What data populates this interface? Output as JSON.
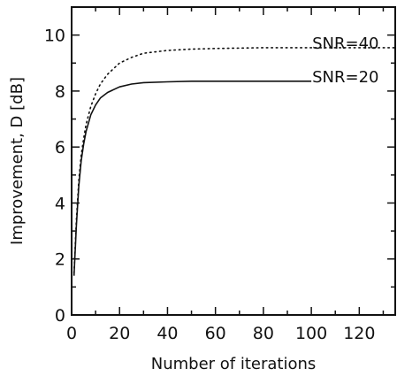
{
  "chart_data": {
    "type": "line",
    "title": "",
    "xlabel": "Number of iterations",
    "ylabel": "Improvement, D [dB]",
    "xlim": [
      0,
      135
    ],
    "ylim": [
      0,
      11
    ],
    "x_ticks": [
      0,
      20,
      40,
      60,
      80,
      100,
      120
    ],
    "y_ticks": [
      0,
      2,
      4,
      6,
      8,
      10
    ],
    "grid": false,
    "legend": "none",
    "series": [
      {
        "name": "SNR=40",
        "style": "dotted",
        "color": "#111111",
        "x": [
          1,
          2,
          3,
          4,
          5,
          6,
          8,
          10,
          12,
          15,
          20,
          25,
          30,
          40,
          50,
          60,
          80,
          100,
          120,
          135
        ],
        "y": [
          1.5,
          3.4,
          4.8,
          5.7,
          6.3,
          6.8,
          7.45,
          7.9,
          8.25,
          8.6,
          9.0,
          9.2,
          9.35,
          9.45,
          9.5,
          9.52,
          9.55,
          9.55,
          9.55,
          9.55
        ]
      },
      {
        "name": "SNR=20",
        "style": "solid",
        "color": "#111111",
        "x": [
          1,
          2,
          3,
          4,
          5,
          6,
          8,
          10,
          12,
          15,
          20,
          25,
          30,
          40,
          50,
          60,
          80,
          100
        ],
        "y": [
          1.4,
          3.2,
          4.6,
          5.5,
          6.1,
          6.55,
          7.15,
          7.5,
          7.75,
          7.95,
          8.15,
          8.25,
          8.3,
          8.33,
          8.35,
          8.35,
          8.35,
          8.35
        ]
      }
    ],
    "annotations": [
      {
        "text": "SNR=40",
        "x": 100,
        "y": 9.55
      },
      {
        "text": "SNR=20",
        "x": 100,
        "y": 8.35
      }
    ]
  }
}
